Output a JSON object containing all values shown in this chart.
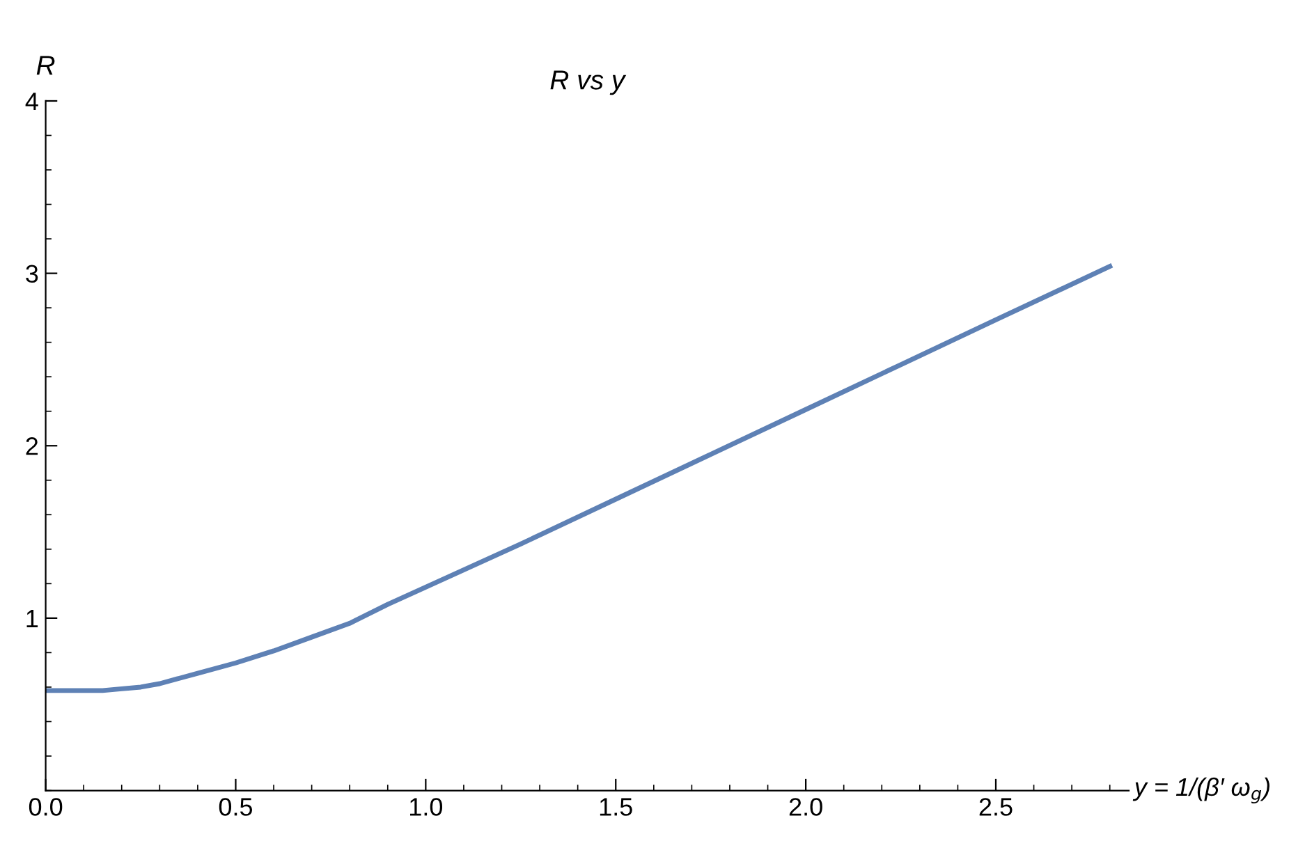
{
  "chart_data": {
    "type": "line",
    "title": "R vs y",
    "xlabel": "y = 1/(β′ ω$_{g}$)",
    "ylabel": "R",
    "x": [
      0,
      0.1,
      0.15,
      0.2,
      0.25,
      0.3,
      0.4,
      0.5,
      0.6,
      0.7,
      0.8,
      0.9,
      1.0,
      1.25,
      1.5,
      1.75,
      2.0,
      2.25,
      2.5,
      2.8
    ],
    "series": [
      {
        "color": "#5e81b5",
        "values": [
          0.58,
          0.58,
          0.58,
          0.59,
          0.6,
          0.62,
          0.68,
          0.74,
          0.81,
          0.89,
          0.97,
          1.08,
          1.18,
          1.43,
          1.69,
          1.95,
          2.21,
          2.47,
          2.73,
          3.04
        ]
      }
    ],
    "xlim": [
      0,
      2.85
    ],
    "ylim": [
      0,
      4
    ],
    "xticks": [
      {
        "value": 0,
        "label": "0.0"
      },
      0.5,
      {
        "value": 1,
        "label": "1.0"
      },
      1.5,
      {
        "value": 2,
        "label": "2.0"
      },
      2.5
    ],
    "yticks": [
      1,
      2,
      3,
      4
    ],
    "grid": false,
    "marker": "none",
    "line_style": "solid"
  }
}
